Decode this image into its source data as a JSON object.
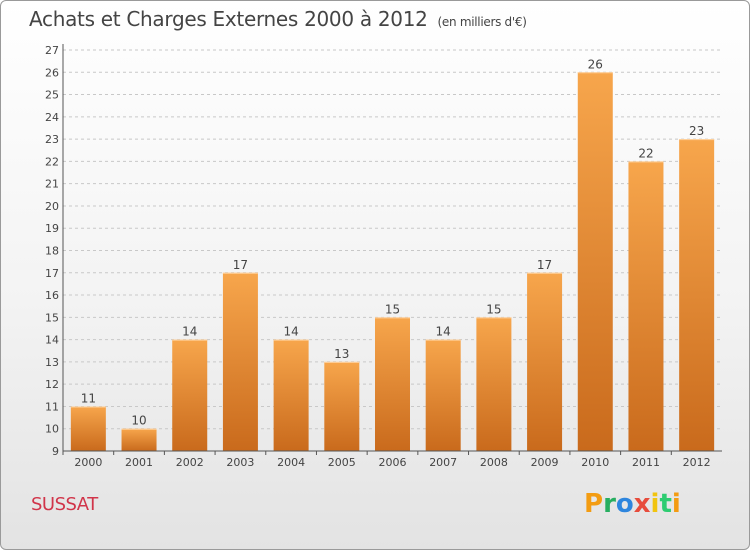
{
  "title": "Achats et Charges Externes 2000 à 2012",
  "unit": "(en milliers d'€)",
  "place": "SUSSAT",
  "logo": {
    "letters": [
      "P",
      "r",
      "o",
      "x",
      "i",
      "t",
      "i"
    ],
    "colors": [
      "#f39c12",
      "#27ae60",
      "#2e86de",
      "#e74c3c",
      "#f1c40f",
      "#2ecc71",
      "#f39c12"
    ]
  },
  "colors": {
    "bar_top": "#f7a64c",
    "bar_bottom": "#c96a1c",
    "grid": "#c8c8c8",
    "axis": "#555555",
    "place": "#d1354a"
  },
  "chart_data": {
    "type": "bar",
    "title": "Achats et Charges Externes 2000 à 2012",
    "subtitle": "(en milliers d'€)",
    "xlabel": "",
    "ylabel": "",
    "categories": [
      "2000",
      "2001",
      "2002",
      "2003",
      "2004",
      "2005",
      "2006",
      "2007",
      "2008",
      "2009",
      "2010",
      "2011",
      "2012"
    ],
    "values": [
      11,
      10,
      14,
      17,
      14,
      13,
      15,
      14,
      15,
      17,
      26,
      22,
      23
    ],
    "ylim": [
      9,
      27
    ],
    "yticks": [
      9,
      10,
      11,
      12,
      13,
      14,
      15,
      16,
      17,
      18,
      19,
      20,
      21,
      22,
      23,
      24,
      25,
      26,
      27
    ],
    "grid": true
  }
}
